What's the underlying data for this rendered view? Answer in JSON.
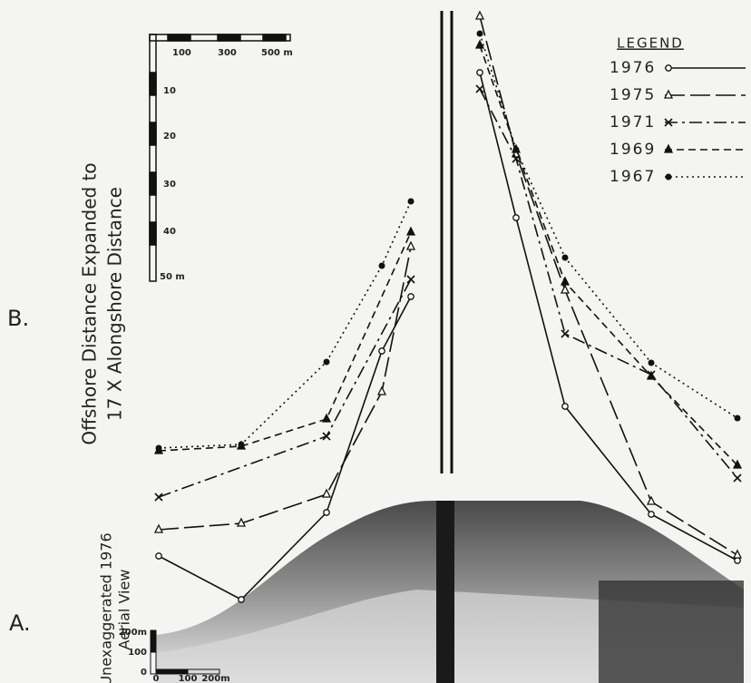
{
  "legend": {
    "title": "LEGEND",
    "entries": [
      "1976",
      "1975",
      "1971",
      "1969",
      "1967"
    ]
  },
  "scale_b": {
    "horizontal_labels": [
      "100",
      "300",
      "500 m"
    ],
    "vertical_labels": [
      "10",
      "20",
      "30",
      "40",
      "50 m"
    ]
  },
  "panel_b": {
    "letter": "B.",
    "caption_lines": [
      "Offshore Distance Expanded to",
      "17 X Alongshore Distance"
    ]
  },
  "panel_a": {
    "letter": "A.",
    "caption_lines": [
      "Unexaggerated 1976",
      "Aerial View"
    ],
    "vertical_scale_labels": [
      "200m",
      "100",
      "0"
    ],
    "horizontal_scale_labels": [
      "0",
      "100",
      "200m"
    ]
  }
}
